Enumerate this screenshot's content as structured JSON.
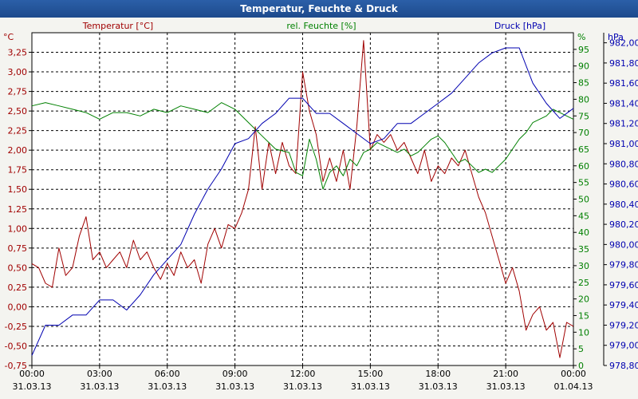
{
  "window": {
    "title": "Temperatur, Feuchte & Druck"
  },
  "chart_data": {
    "type": "line",
    "title": "Temperatur, Feuchte & Druck",
    "x_ticks": [
      {
        "time": "00:00",
        "date": "31.03.13"
      },
      {
        "time": "03:00",
        "date": "31.03.13"
      },
      {
        "time": "06:00",
        "date": "31.03.13"
      },
      {
        "time": "09:00",
        "date": "31.03.13"
      },
      {
        "time": "12:00",
        "date": "31.03.13"
      },
      {
        "time": "15:00",
        "date": "31.03.13"
      },
      {
        "time": "18:00",
        "date": "31.03.13"
      },
      {
        "time": "21:00",
        "date": "31.03.13"
      },
      {
        "time": "00:00",
        "date": "01.04.13"
      }
    ],
    "x_range_hours": [
      0,
      24
    ],
    "axes": {
      "temperature": {
        "label": "Temperatur [°C]",
        "unit": "°C",
        "range": [
          -0.75,
          3.5
        ],
        "color": "#a00000",
        "ticks": [
          "-0,75",
          "-0,50",
          "-0,25",
          "0,00",
          "0,25",
          "0,50",
          "0,75",
          "1,00",
          "1,25",
          "1,50",
          "1,75",
          "2,00",
          "2,25",
          "2,50",
          "2,75",
          "3,00",
          "3,25"
        ]
      },
      "humidity": {
        "label": "rel. Feuchte [%]",
        "unit": "%",
        "range": [
          0,
          100
        ],
        "color": "#008000",
        "ticks": [
          "0",
          "5",
          "10",
          "15",
          "20",
          "25",
          "30",
          "35",
          "40",
          "45",
          "50",
          "55",
          "60",
          "65",
          "70",
          "75",
          "80",
          "85",
          "90",
          "95"
        ]
      },
      "pressure": {
        "label": "Druck [hPa]",
        "unit": "hPa",
        "range": [
          978.8,
          982.1
        ],
        "color": "#0000b0",
        "ticks": [
          "978,80",
          "979,00",
          "979,20",
          "979,40",
          "979,60",
          "979,80",
          "980,00",
          "980,20",
          "980,40",
          "980,60",
          "980,80",
          "981,00",
          "981,20",
          "981,40",
          "981,60",
          "981,80",
          "982,00"
        ]
      }
    },
    "series": [
      {
        "name": "Temperatur",
        "axis": "temperature",
        "x": [
          0,
          0.3,
          0.6,
          0.9,
          1.2,
          1.5,
          1.8,
          2.1,
          2.4,
          2.7,
          3.0,
          3.3,
          3.6,
          3.9,
          4.2,
          4.5,
          4.8,
          5.1,
          5.4,
          5.7,
          6.0,
          6.3,
          6.6,
          6.9,
          7.2,
          7.5,
          7.8,
          8.1,
          8.4,
          8.7,
          9.0,
          9.3,
          9.6,
          9.9,
          10.2,
          10.5,
          10.8,
          11.1,
          11.4,
          11.7,
          12.0,
          12.3,
          12.6,
          12.9,
          13.2,
          13.5,
          13.8,
          14.1,
          14.4,
          14.7,
          15.0,
          15.3,
          15.6,
          15.9,
          16.2,
          16.5,
          16.8,
          17.1,
          17.4,
          17.7,
          18.0,
          18.3,
          18.6,
          18.9,
          19.2,
          19.5,
          19.8,
          20.1,
          20.4,
          20.7,
          21.0,
          21.3,
          21.6,
          21.9,
          22.2,
          22.5,
          22.8,
          23.1,
          23.4,
          23.7,
          24.0
        ],
        "values": [
          0.55,
          0.5,
          0.3,
          0.25,
          0.75,
          0.4,
          0.5,
          0.9,
          1.15,
          0.6,
          0.7,
          0.5,
          0.6,
          0.7,
          0.5,
          0.85,
          0.6,
          0.7,
          0.5,
          0.35,
          0.55,
          0.4,
          0.7,
          0.5,
          0.6,
          0.3,
          0.8,
          1.0,
          0.75,
          1.05,
          1.0,
          1.2,
          1.5,
          2.3,
          1.5,
          2.1,
          1.7,
          2.1,
          1.8,
          1.7,
          3.0,
          2.5,
          2.2,
          1.6,
          1.9,
          1.6,
          2.0,
          1.5,
          2.3,
          3.4,
          2.0,
          2.2,
          2.1,
          2.2,
          2.0,
          2.1,
          1.9,
          1.7,
          2.0,
          1.6,
          1.8,
          1.7,
          1.9,
          1.8,
          2.0,
          1.7,
          1.4,
          1.2,
          0.9,
          0.6,
          0.3,
          0.5,
          0.2,
          -0.3,
          -0.1,
          0.0,
          -0.3,
          -0.2,
          -0.65,
          -0.2,
          -0.25
        ]
      },
      {
        "name": "rel. Feuchte",
        "axis": "humidity",
        "x": [
          0,
          0.6,
          1.2,
          1.8,
          2.4,
          3.0,
          3.6,
          4.2,
          4.8,
          5.4,
          6.0,
          6.6,
          7.2,
          7.8,
          8.4,
          9.0,
          9.6,
          10.2,
          10.8,
          11.4,
          11.7,
          12.0,
          12.3,
          12.6,
          12.9,
          13.2,
          13.5,
          13.8,
          14.1,
          14.4,
          14.7,
          15.0,
          15.3,
          15.6,
          15.9,
          16.2,
          16.5,
          16.8,
          17.1,
          17.4,
          17.7,
          18.0,
          18.3,
          18.6,
          18.9,
          19.2,
          19.5,
          19.8,
          20.1,
          20.4,
          20.7,
          21.0,
          21.3,
          21.6,
          21.9,
          22.2,
          22.5,
          22.8,
          23.1,
          23.4,
          23.7,
          24.0
        ],
        "values": [
          78,
          79,
          78,
          77,
          76,
          74,
          76,
          76,
          75,
          77,
          76,
          78,
          77,
          76,
          79,
          77,
          73,
          69,
          65,
          64,
          58,
          57,
          68,
          62,
          53,
          58,
          60,
          57,
          62,
          60,
          64,
          65,
          67,
          66,
          65,
          64,
          65,
          63,
          64,
          66,
          68,
          69,
          67,
          64,
          61,
          62,
          60,
          58,
          59,
          58,
          60,
          62,
          65,
          68,
          70,
          73,
          74,
          75,
          77,
          76,
          75,
          74
        ]
      },
      {
        "name": "Druck",
        "axis": "pressure",
        "x": [
          0,
          0.6,
          1.2,
          1.8,
          2.4,
          3.0,
          3.6,
          4.2,
          4.8,
          5.4,
          6.0,
          6.6,
          7.2,
          7.8,
          8.4,
          9.0,
          9.6,
          10.2,
          10.8,
          11.4,
          12.0,
          12.6,
          13.2,
          13.8,
          14.4,
          15.0,
          15.6,
          16.2,
          16.8,
          17.4,
          18.0,
          18.6,
          19.2,
          19.8,
          20.4,
          21.0,
          21.6,
          22.2,
          22.8,
          23.4,
          24.0
        ],
        "values": [
          978.9,
          979.2,
          979.2,
          979.3,
          979.3,
          979.45,
          979.45,
          979.35,
          979.5,
          979.7,
          979.85,
          980.0,
          980.3,
          980.55,
          980.75,
          981.0,
          981.05,
          981.2,
          981.3,
          981.45,
          981.45,
          981.3,
          981.3,
          981.2,
          981.1,
          981.0,
          981.05,
          981.2,
          981.2,
          981.3,
          981.4,
          981.5,
          981.65,
          981.8,
          981.9,
          981.95,
          981.95,
          981.6,
          981.4,
          981.25,
          981.35
        ]
      }
    ],
    "grid": true
  }
}
